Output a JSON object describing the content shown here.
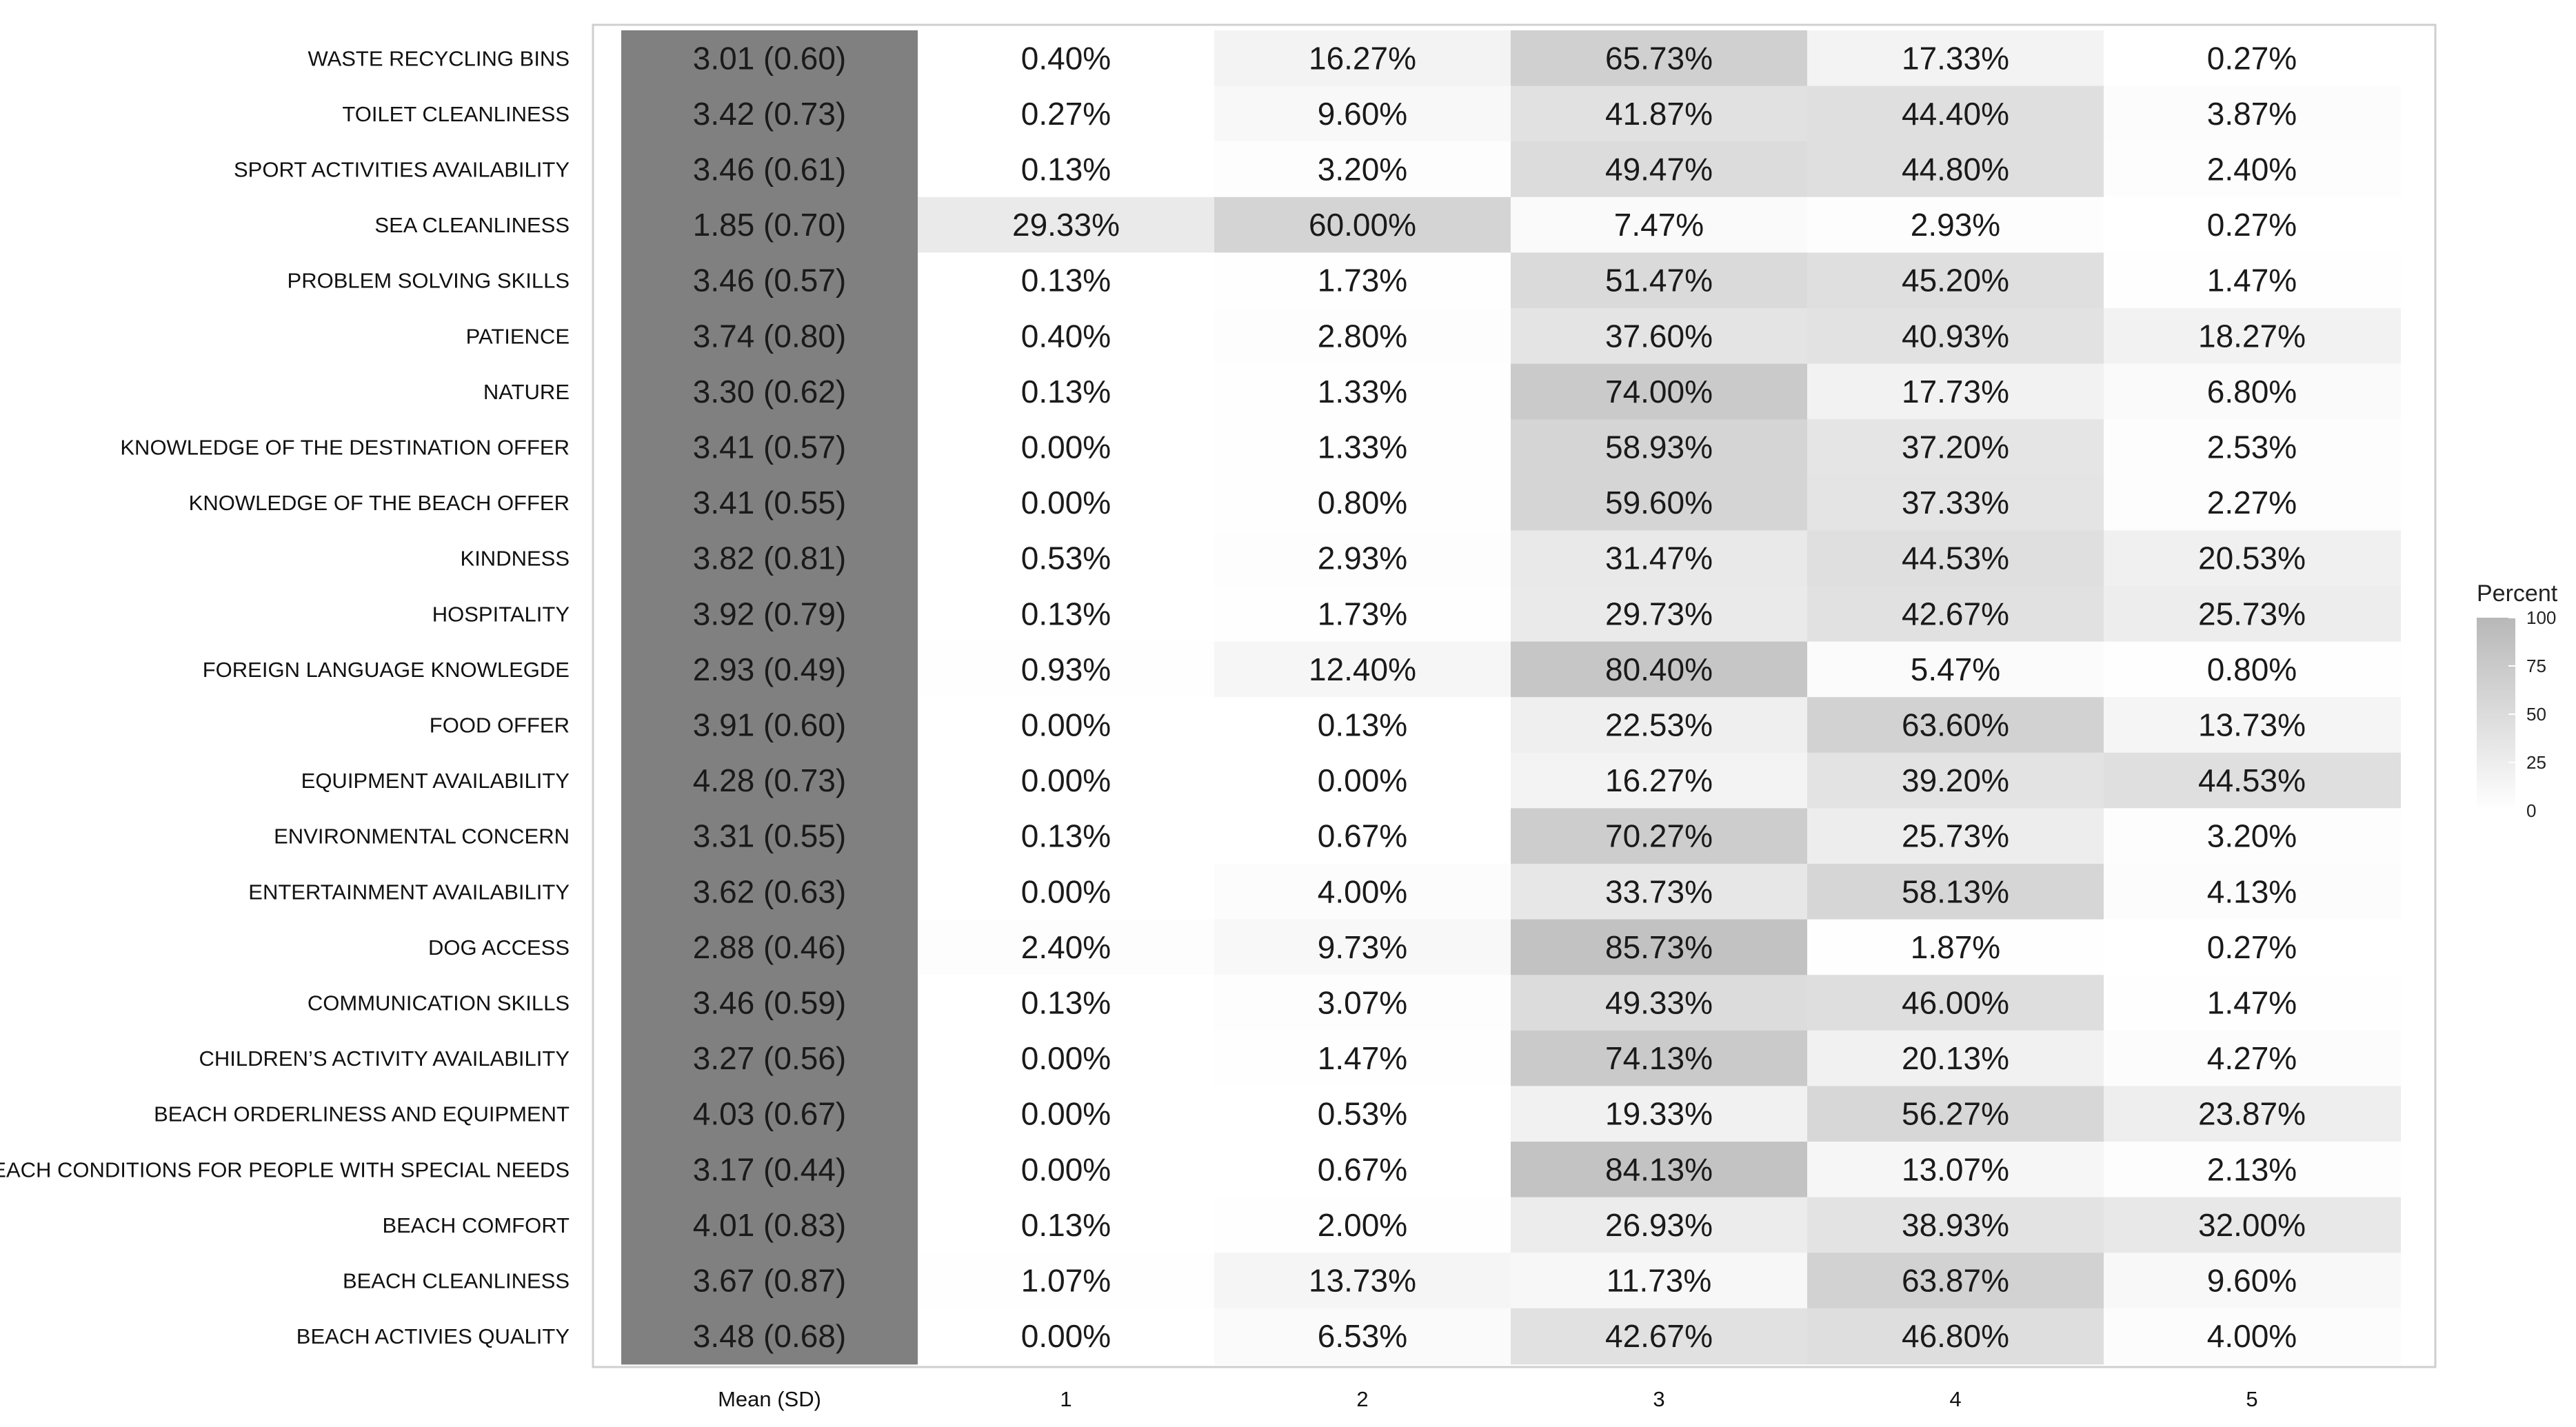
{
  "chart_data": {
    "type": "heatmap",
    "title": "",
    "columns": [
      "Mean (SD)",
      "1",
      "2",
      "3",
      "4",
      "5"
    ],
    "rows": [
      {
        "label": "WASTE RECYCLING BINS",
        "mean_sd": "3.01 (0.60)",
        "values": [
          0.4,
          16.27,
          65.73,
          17.33,
          0.27
        ]
      },
      {
        "label": "TOILET CLEANLINESS",
        "mean_sd": "3.42 (0.73)",
        "values": [
          0.27,
          9.6,
          41.87,
          44.4,
          3.87
        ]
      },
      {
        "label": "SPORT ACTIVITIES AVAILABILITY",
        "mean_sd": "3.46 (0.61)",
        "values": [
          0.13,
          3.2,
          49.47,
          44.8,
          2.4
        ]
      },
      {
        "label": "SEA CLEANLINESS",
        "mean_sd": "1.85 (0.70)",
        "values": [
          29.33,
          60.0,
          7.47,
          2.93,
          0.27
        ]
      },
      {
        "label": "PROBLEM SOLVING SKILLS",
        "mean_sd": "3.46 (0.57)",
        "values": [
          0.13,
          1.73,
          51.47,
          45.2,
          1.47
        ]
      },
      {
        "label": "PATIENCE",
        "mean_sd": "3.74 (0.80)",
        "values": [
          0.4,
          2.8,
          37.6,
          40.93,
          18.27
        ]
      },
      {
        "label": "NATURE",
        "mean_sd": "3.30 (0.62)",
        "values": [
          0.13,
          1.33,
          74.0,
          17.73,
          6.8
        ]
      },
      {
        "label": "KNOWLEDGE OF THE DESTINATION OFFER",
        "mean_sd": "3.41 (0.57)",
        "values": [
          0.0,
          1.33,
          58.93,
          37.2,
          2.53
        ]
      },
      {
        "label": "KNOWLEDGE OF THE BEACH OFFER",
        "mean_sd": "3.41 (0.55)",
        "values": [
          0.0,
          0.8,
          59.6,
          37.33,
          2.27
        ]
      },
      {
        "label": "KINDNESS",
        "mean_sd": "3.82 (0.81)",
        "values": [
          0.53,
          2.93,
          31.47,
          44.53,
          20.53
        ]
      },
      {
        "label": "HOSPITALITY",
        "mean_sd": "3.92 (0.79)",
        "values": [
          0.13,
          1.73,
          29.73,
          42.67,
          25.73
        ]
      },
      {
        "label": "FOREIGN LANGUAGE KNOWLEGDE",
        "mean_sd": "2.93 (0.49)",
        "values": [
          0.93,
          12.4,
          80.4,
          5.47,
          0.8
        ]
      },
      {
        "label": "FOOD OFFER",
        "mean_sd": "3.91 (0.60)",
        "values": [
          0.0,
          0.13,
          22.53,
          63.6,
          13.73
        ]
      },
      {
        "label": "EQUIPMENT AVAILABILITY",
        "mean_sd": "4.28 (0.73)",
        "values": [
          0.0,
          0.0,
          16.27,
          39.2,
          44.53
        ]
      },
      {
        "label": "ENVIRONMENTAL CONCERN",
        "mean_sd": "3.31 (0.55)",
        "values": [
          0.13,
          0.67,
          70.27,
          25.73,
          3.2
        ]
      },
      {
        "label": "ENTERTAINMENT AVAILABILITY",
        "mean_sd": "3.62 (0.63)",
        "values": [
          0.0,
          4.0,
          33.73,
          58.13,
          4.13
        ]
      },
      {
        "label": "DOG ACCESS",
        "mean_sd": "2.88 (0.46)",
        "values": [
          2.4,
          9.73,
          85.73,
          1.87,
          0.27
        ]
      },
      {
        "label": "COMMUNICATION SKILLS",
        "mean_sd": "3.46 (0.59)",
        "values": [
          0.13,
          3.07,
          49.33,
          46.0,
          1.47
        ]
      },
      {
        "label": "CHILDREN’S ACTIVITY AVAILABILITY",
        "mean_sd": "3.27 (0.56)",
        "values": [
          0.0,
          1.47,
          74.13,
          20.13,
          4.27
        ]
      },
      {
        "label": "BEACH ORDERLINESS AND EQUIPMENT",
        "mean_sd": "4.03 (0.67)",
        "values": [
          0.0,
          0.53,
          19.33,
          56.27,
          23.87
        ]
      },
      {
        "label": "BEACH CONDITIONS FOR PEOPLE WITH SPECIAL NEEDS",
        "mean_sd": "3.17 (0.44)",
        "values": [
          0.0,
          0.67,
          84.13,
          13.07,
          2.13
        ]
      },
      {
        "label": "BEACH COMFORT",
        "mean_sd": "4.01 (0.83)",
        "values": [
          0.13,
          2.0,
          26.93,
          38.93,
          32.0
        ]
      },
      {
        "label": "BEACH CLEANLINESS",
        "mean_sd": "3.67 (0.87)",
        "values": [
          1.07,
          13.73,
          11.73,
          63.87,
          9.6
        ]
      },
      {
        "label": "BEACH ACTIVIES QUALITY",
        "mean_sd": "3.48 (0.68)",
        "values": [
          0.0,
          6.53,
          42.67,
          46.8,
          4.0
        ]
      }
    ],
    "legend": {
      "title": "Percent",
      "ticks": [
        100,
        75,
        50,
        25,
        0
      ],
      "range": [
        0,
        100
      ],
      "color_low": "#ffffff",
      "color_high": "#b8b8b8",
      "placement": "right"
    },
    "mean_column_color": "#808080",
    "grid": false
  }
}
